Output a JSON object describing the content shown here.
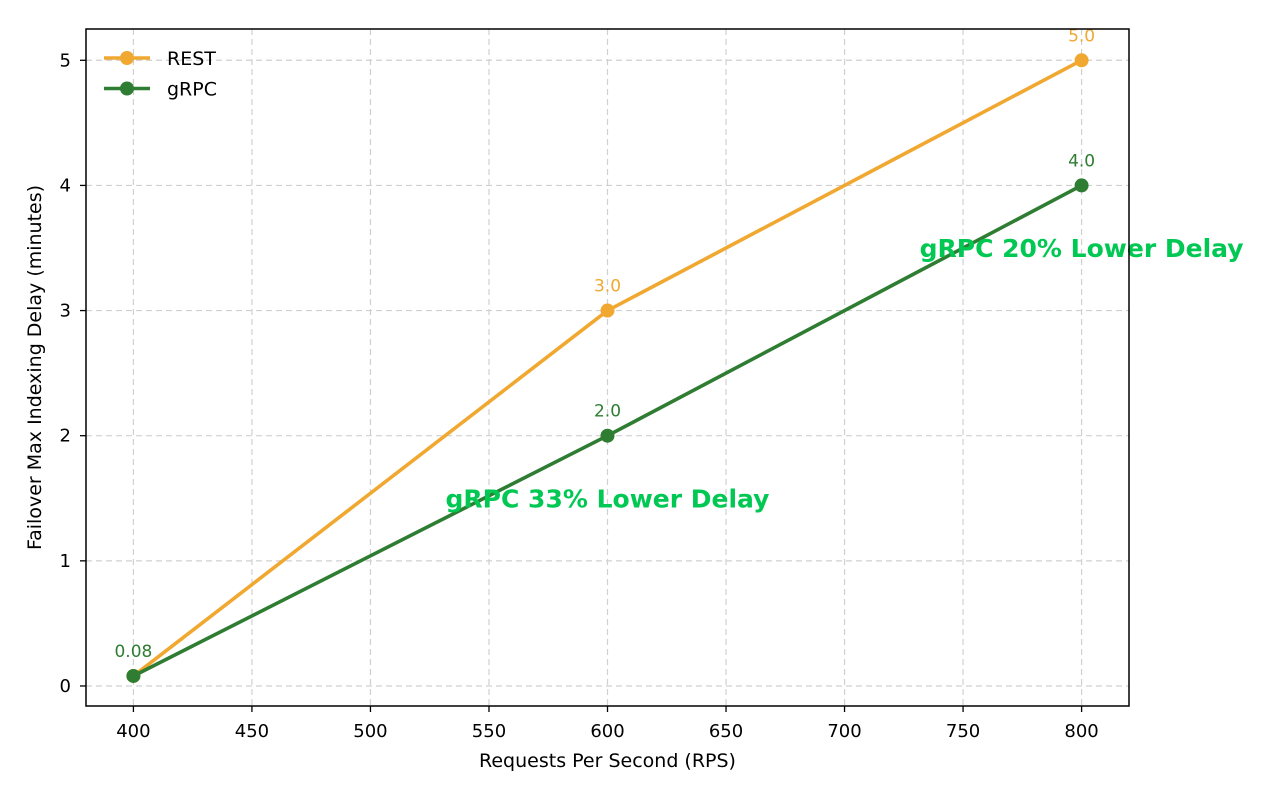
{
  "chart_data": {
    "type": "line",
    "title": "",
    "xlabel": "Requests Per Second (RPS)",
    "ylabel": "Failover Max Indexing Delay (minutes)",
    "xlim": [
      380,
      820
    ],
    "ylim": [
      -0.16,
      5.25
    ],
    "xticks": [
      400,
      450,
      500,
      550,
      600,
      650,
      700,
      750,
      800
    ],
    "yticks": [
      0,
      1,
      2,
      3,
      4,
      5
    ],
    "grid": true,
    "legend_position": "top-left",
    "series": [
      {
        "name": "REST",
        "color": "#f0a830",
        "points": [
          {
            "x": 400,
            "y": 0.08,
            "label": ""
          },
          {
            "x": 600,
            "y": 3.0,
            "label": "3.0"
          },
          {
            "x": 800,
            "y": 5.0,
            "label": "5.0"
          }
        ]
      },
      {
        "name": "gRPC",
        "color": "#2e7d32",
        "points": [
          {
            "x": 400,
            "y": 0.08,
            "label": "0.08"
          },
          {
            "x": 600,
            "y": 2.0,
            "label": "2.0"
          },
          {
            "x": 800,
            "y": 4.0,
            "label": "4.0"
          }
        ]
      }
    ],
    "annotations": [
      {
        "text": "gRPC 33% Lower Delay",
        "x": 600,
        "y": 1.5,
        "color": "#00c853"
      },
      {
        "text": "gRPC 20% Lower Delay",
        "x": 800,
        "y": 3.5,
        "color": "#00c853"
      }
    ]
  }
}
